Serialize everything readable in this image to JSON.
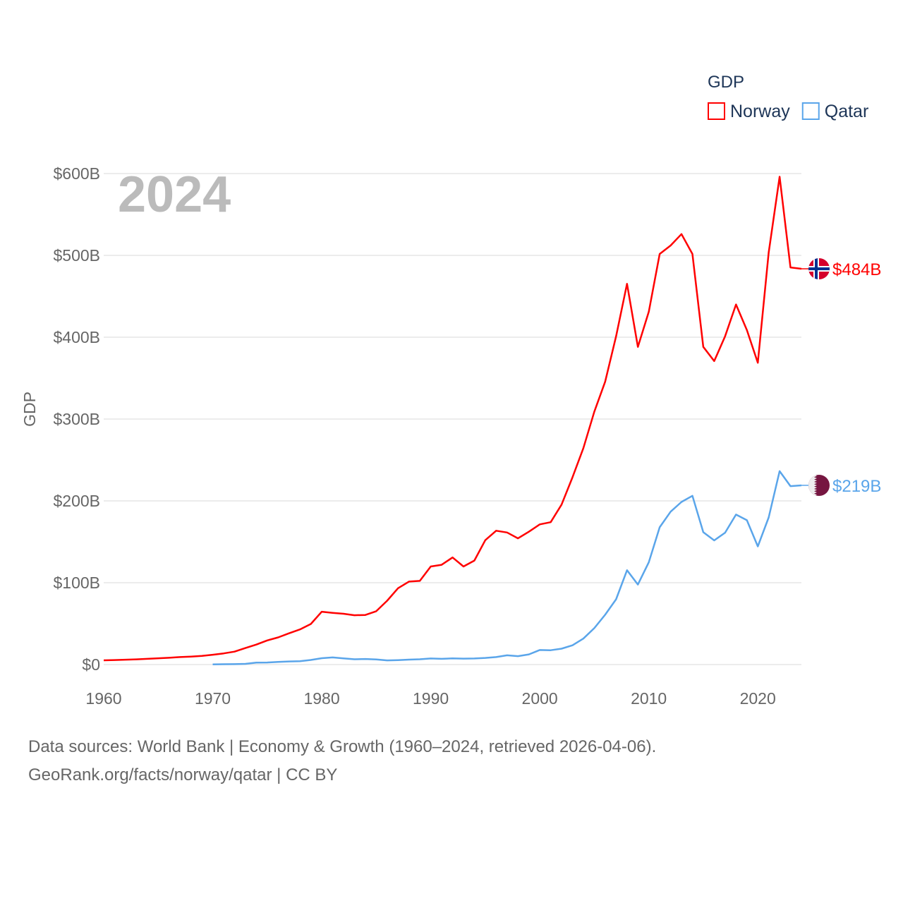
{
  "chart_data": {
    "type": "line",
    "title": "",
    "ylabel": "GDP",
    "xlabel": "",
    "year_label": "2024",
    "legend": {
      "title": "GDP",
      "position": "top-right"
    },
    "xlim": [
      1960,
      2024
    ],
    "ylim": [
      0,
      600
    ],
    "x_ticks": [
      1960,
      1970,
      1980,
      1990,
      2000,
      2010,
      2020
    ],
    "y_ticks": [
      0,
      100,
      200,
      300,
      400,
      500,
      600
    ],
    "y_tick_labels": [
      "$0",
      "$100B",
      "$200B",
      "$300B",
      "$400B",
      "$500B",
      "$600B"
    ],
    "series": [
      {
        "name": "Norway",
        "color": "#ff0000",
        "end_label": "$484B",
        "flag": "norway-flag",
        "start_year": 1960,
        "values": [
          5.16,
          5.55,
          5.97,
          6.4,
          7.0,
          7.7,
          8.3,
          9.1,
          9.7,
          10.6,
          12.0,
          13.6,
          15.8,
          20.2,
          24.4,
          29.5,
          33.2,
          38.2,
          42.9,
          49.6,
          64.6,
          63.2,
          62.1,
          60.3,
          60.6,
          65.2,
          78.0,
          93.3,
          101.4,
          102.2,
          119.8,
          121.9,
          130.9,
          119.8,
          127.1,
          152.0,
          163.5,
          161.4,
          154.2,
          162.3,
          171.3,
          174.0,
          195.4,
          228.8,
          264.4,
          308.9,
          345.6,
          401.1,
          465.3,
          388.2,
          431.3,
          501.7,
          512.1,
          526.0,
          501.7,
          388.2,
          370.9,
          401.1,
          440.0,
          408.7,
          368.8,
          503.4,
          596.1,
          485.3,
          483.6
        ]
      },
      {
        "name": "Qatar",
        "color": "#5aa5ea",
        "end_label": "$219B",
        "flag": "qatar-flag",
        "start_year": 1970,
        "values": [
          0.3,
          0.39,
          0.54,
          0.86,
          2.4,
          2.5,
          3.3,
          3.8,
          4.1,
          5.6,
          7.8,
          8.7,
          7.6,
          6.5,
          6.8,
          6.2,
          5.1,
          5.4,
          6.0,
          6.5,
          7.4,
          7.0,
          7.6,
          7.2,
          7.4,
          8.1,
          9.1,
          11.3,
          10.3,
          12.4,
          17.8,
          17.5,
          19.4,
          23.5,
          31.7,
          44.5,
          60.9,
          79.7,
          115.3,
          97.8,
          125.1,
          167.8,
          186.8,
          198.7,
          206.2,
          161.7,
          151.7,
          161.1,
          183.3,
          176.4,
          144.4,
          179.7,
          236.3,
          218.0,
          219.0
        ]
      }
    ]
  },
  "footer": {
    "line1": "Data sources: World Bank | Economy & Growth (1960–2024, retrieved 2026-04-06).",
    "line2": "GeoRank.org/facts/norway/qatar | CC BY"
  }
}
